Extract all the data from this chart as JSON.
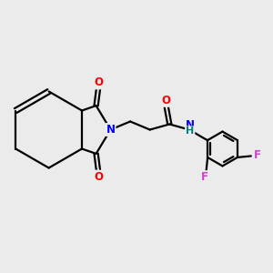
{
  "bg_color": "#ebebeb",
  "bond_color": "#000000",
  "bond_width": 1.6,
  "atom_colors": {
    "O": "#ff0000",
    "N": "#0000ff",
    "F": "#cc44cc",
    "H": "#008080",
    "C": "#000000"
  },
  "font_size": 8.5
}
